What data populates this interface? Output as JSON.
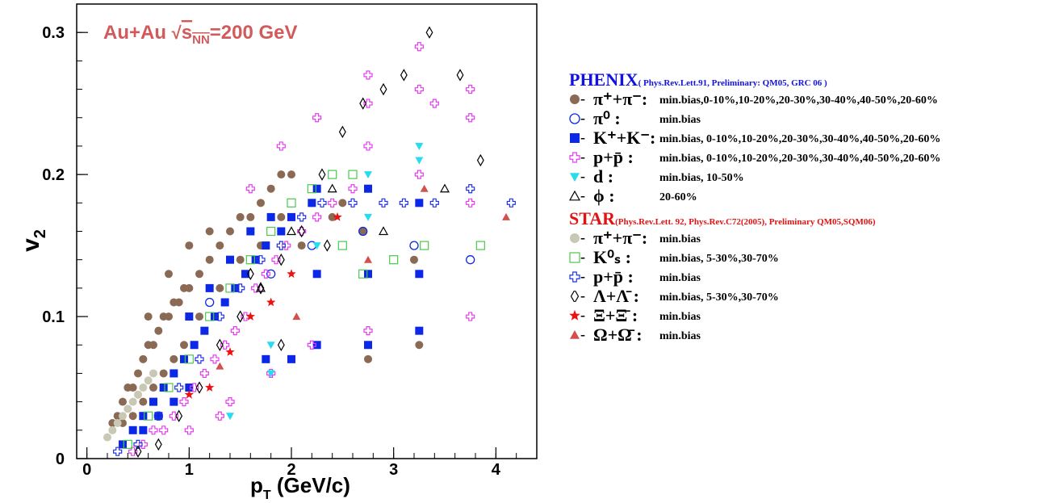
{
  "colors": {
    "pi_phenix": "#8b6a55",
    "pi0": "#0a28e6",
    "kaon": "#0a28e6",
    "proton": "#e63cf0",
    "deuteron": "#28dcf0",
    "phi": "#000000",
    "pi_star": "#c8c8b4",
    "k0s": "#4cc84c",
    "p_star": "#1e32e6",
    "lambda": "#000000",
    "xi": "#ee1111",
    "omega": "#d25050",
    "phenix_title": "#1212e0",
    "star_title": "#e01212",
    "annotation": "#d25a5a"
  },
  "chart_data": {
    "type": "scatter",
    "xlabel": "p_T (GeV/c)",
    "ylabel": "v_2",
    "annotation": "Au+Au √s_NN=200 GeV",
    "xlim": [
      -0.1,
      4.4
    ],
    "ylim": [
      0,
      0.32
    ],
    "xticks": [
      "0",
      "1",
      "2",
      "3",
      "4"
    ],
    "yticks": [
      "0",
      "0.1",
      "0.2",
      "0.3"
    ],
    "grid": false,
    "legend_placement": "right outside",
    "series": [
      {
        "id": "pi_phenix",
        "marker": "circle-filled",
        "color": "#8b6a55",
        "points": [
          [
            0.25,
            0.025
          ],
          [
            0.3,
            0.03
          ],
          [
            0.35,
            0.04
          ],
          [
            0.4,
            0.05
          ],
          [
            0.45,
            0.05
          ],
          [
            0.5,
            0.06
          ],
          [
            0.55,
            0.07
          ],
          [
            0.6,
            0.08
          ],
          [
            0.65,
            0.08
          ],
          [
            0.7,
            0.09
          ],
          [
            0.75,
            0.1
          ],
          [
            0.8,
            0.1
          ],
          [
            0.85,
            0.11
          ],
          [
            0.9,
            0.11
          ],
          [
            0.95,
            0.12
          ],
          [
            1.0,
            0.12
          ],
          [
            1.1,
            0.13
          ],
          [
            1.2,
            0.14
          ],
          [
            1.3,
            0.15
          ],
          [
            1.4,
            0.16
          ],
          [
            1.5,
            0.17
          ],
          [
            1.6,
            0.17
          ],
          [
            1.7,
            0.18
          ],
          [
            1.8,
            0.19
          ],
          [
            1.9,
            0.2
          ],
          [
            2.0,
            0.2
          ],
          [
            2.2,
            0.18
          ],
          [
            2.5,
            0.18
          ],
          [
            2.7,
            0.16
          ],
          [
            3.2,
            0.14
          ],
          [
            0.35,
            0.025
          ],
          [
            0.45,
            0.03
          ],
          [
            0.55,
            0.04
          ],
          [
            0.65,
            0.05
          ],
          [
            0.75,
            0.06
          ],
          [
            0.85,
            0.07
          ],
          [
            0.95,
            0.08
          ],
          [
            1.1,
            0.1
          ],
          [
            1.3,
            0.12
          ],
          [
            1.5,
            0.14
          ],
          [
            1.7,
            0.15
          ],
          [
            1.9,
            0.17
          ],
          [
            2.1,
            0.15
          ],
          [
            2.4,
            0.17
          ],
          [
            2.75,
            0.07
          ],
          [
            3.25,
            0.08
          ],
          [
            0.6,
            0.1
          ],
          [
            0.8,
            0.13
          ],
          [
            1.0,
            0.15
          ],
          [
            1.2,
            0.16
          ]
        ]
      },
      {
        "id": "pi0",
        "marker": "circle-open",
        "color": "#0a28e6",
        "points": [
          [
            1.2,
            0.11
          ],
          [
            1.8,
            0.13
          ],
          [
            2.2,
            0.15
          ],
          [
            2.7,
            0.16
          ],
          [
            3.2,
            0.15
          ],
          [
            3.75,
            0.14
          ]
        ]
      },
      {
        "id": "kaon",
        "marker": "square-filled",
        "color": "#0a28e6",
        "points": [
          [
            0.35,
            0.01
          ],
          [
            0.45,
            0.02
          ],
          [
            0.55,
            0.03
          ],
          [
            0.65,
            0.04
          ],
          [
            0.75,
            0.05
          ],
          [
            0.85,
            0.06
          ],
          [
            0.95,
            0.07
          ],
          [
            1.05,
            0.08
          ],
          [
            1.15,
            0.09
          ],
          [
            1.25,
            0.1
          ],
          [
            1.35,
            0.11
          ],
          [
            1.45,
            0.12
          ],
          [
            1.55,
            0.13
          ],
          [
            1.65,
            0.14
          ],
          [
            1.75,
            0.15
          ],
          [
            1.9,
            0.16
          ],
          [
            2.0,
            0.17
          ],
          [
            2.2,
            0.18
          ],
          [
            2.25,
            0.19
          ],
          [
            2.75,
            0.19
          ],
          [
            3.25,
            0.18
          ],
          [
            2.25,
            0.08
          ],
          [
            2.75,
            0.08
          ],
          [
            3.25,
            0.09
          ],
          [
            2.0,
            0.07
          ],
          [
            1.75,
            0.07
          ],
          [
            1.0,
            0.05
          ],
          [
            0.55,
            0.02
          ],
          [
            0.7,
            0.03
          ],
          [
            0.85,
            0.04
          ],
          [
            1.0,
            0.1
          ],
          [
            1.2,
            0.12
          ],
          [
            1.4,
            0.14
          ],
          [
            1.6,
            0.16
          ],
          [
            1.8,
            0.17
          ],
          [
            2.25,
            0.13
          ],
          [
            2.75,
            0.13
          ],
          [
            3.25,
            0.13
          ]
        ]
      },
      {
        "id": "proton",
        "marker": "cross-open",
        "color": "#e63cf0",
        "points": [
          [
            0.45,
            0.005
          ],
          [
            0.55,
            0.01
          ],
          [
            0.65,
            0.02
          ],
          [
            0.75,
            0.02
          ],
          [
            0.85,
            0.03
          ],
          [
            0.95,
            0.04
          ],
          [
            1.05,
            0.05
          ],
          [
            1.15,
            0.06
          ],
          [
            1.25,
            0.07
          ],
          [
            1.35,
            0.08
          ],
          [
            1.45,
            0.09
          ],
          [
            1.55,
            0.1
          ],
          [
            1.65,
            0.12
          ],
          [
            1.75,
            0.13
          ],
          [
            1.85,
            0.14
          ],
          [
            1.95,
            0.15
          ],
          [
            2.1,
            0.16
          ],
          [
            2.25,
            0.17
          ],
          [
            2.4,
            0.18
          ],
          [
            2.6,
            0.19
          ],
          [
            2.75,
            0.22
          ],
          [
            2.75,
            0.25
          ],
          [
            3.25,
            0.26
          ],
          [
            3.25,
            0.29
          ],
          [
            3.75,
            0.26
          ],
          [
            3.75,
            0.24
          ],
          [
            3.75,
            0.18
          ],
          [
            3.75,
            0.1
          ],
          [
            2.75,
            0.09
          ],
          [
            3.25,
            0.2
          ],
          [
            2.25,
            0.24
          ],
          [
            2.75,
            0.27
          ],
          [
            3.4,
            0.25
          ],
          [
            1.9,
            0.22
          ],
          [
            1.6,
            0.19
          ],
          [
            1.0,
            0.02
          ],
          [
            1.3,
            0.03
          ],
          [
            1.8,
            0.06
          ],
          [
            2.2,
            0.08
          ],
          [
            1.4,
            0.04
          ]
        ]
      },
      {
        "id": "deuteron",
        "marker": "triangle-down-filled",
        "color": "#28dcf0",
        "points": [
          [
            1.4,
            0.03
          ],
          [
            1.8,
            0.06
          ],
          [
            1.8,
            0.08
          ],
          [
            2.25,
            0.15
          ],
          [
            2.75,
            0.2
          ],
          [
            3.25,
            0.21
          ],
          [
            3.25,
            0.22
          ],
          [
            2.75,
            0.17
          ]
        ]
      },
      {
        "id": "phi",
        "marker": "triangle-up-open",
        "color": "#000000",
        "points": [
          [
            1.7,
            0.12
          ],
          [
            2.0,
            0.16
          ],
          [
            2.4,
            0.19
          ],
          [
            2.9,
            0.16
          ],
          [
            3.5,
            0.19
          ]
        ]
      },
      {
        "id": "pi_star",
        "marker": "circle-filled",
        "color": "#c8c8b4",
        "points": [
          [
            0.2,
            0.015
          ],
          [
            0.25,
            0.02
          ],
          [
            0.3,
            0.025
          ],
          [
            0.35,
            0.03
          ],
          [
            0.4,
            0.035
          ],
          [
            0.45,
            0.04
          ],
          [
            0.5,
            0.045
          ],
          [
            0.55,
            0.05
          ],
          [
            0.6,
            0.055
          ],
          [
            0.65,
            0.06
          ]
        ]
      },
      {
        "id": "k0s",
        "marker": "square-open",
        "color": "#4cc84c",
        "points": [
          [
            0.4,
            0.01
          ],
          [
            0.6,
            0.03
          ],
          [
            0.8,
            0.05
          ],
          [
            1.0,
            0.07
          ],
          [
            1.2,
            0.1
          ],
          [
            1.4,
            0.12
          ],
          [
            1.6,
            0.14
          ],
          [
            1.8,
            0.16
          ],
          [
            2.0,
            0.18
          ],
          [
            2.2,
            0.19
          ],
          [
            2.4,
            0.2
          ],
          [
            2.6,
            0.2
          ],
          [
            2.7,
            0.13
          ],
          [
            3.0,
            0.14
          ],
          [
            3.3,
            0.15
          ],
          [
            3.85,
            0.15
          ],
          [
            2.5,
            0.15
          ]
        ]
      },
      {
        "id": "p_star",
        "marker": "cross-open",
        "color": "#1e32e6",
        "points": [
          [
            0.3,
            0.005
          ],
          [
            0.5,
            0.01
          ],
          [
            0.7,
            0.03
          ],
          [
            0.9,
            0.05
          ],
          [
            1.1,
            0.07
          ],
          [
            1.3,
            0.1
          ],
          [
            1.5,
            0.12
          ],
          [
            1.7,
            0.14
          ],
          [
            1.9,
            0.15
          ],
          [
            2.1,
            0.17
          ],
          [
            2.3,
            0.18
          ],
          [
            2.6,
            0.18
          ],
          [
            2.9,
            0.18
          ],
          [
            3.1,
            0.18
          ],
          [
            3.4,
            0.18
          ],
          [
            3.75,
            0.19
          ],
          [
            4.15,
            0.18
          ]
        ]
      },
      {
        "id": "lambda",
        "marker": "diamond-open",
        "color": "#000000",
        "points": [
          [
            0.5,
            0.005
          ],
          [
            0.7,
            0.01
          ],
          [
            0.9,
            0.03
          ],
          [
            1.1,
            0.05
          ],
          [
            1.3,
            0.08
          ],
          [
            1.5,
            0.1
          ],
          [
            1.7,
            0.12
          ],
          [
            1.9,
            0.14
          ],
          [
            2.1,
            0.16
          ],
          [
            2.3,
            0.2
          ],
          [
            2.5,
            0.23
          ],
          [
            2.7,
            0.25
          ],
          [
            2.9,
            0.26
          ],
          [
            3.1,
            0.27
          ],
          [
            3.35,
            0.3
          ],
          [
            3.65,
            0.27
          ],
          [
            3.85,
            0.21
          ],
          [
            1.9,
            0.08
          ],
          [
            2.35,
            0.15
          ],
          [
            1.6,
            0.13
          ]
        ]
      },
      {
        "id": "xi",
        "marker": "star-filled",
        "color": "#ee1111",
        "points": [
          [
            1.0,
            0.045
          ],
          [
            1.2,
            0.05
          ],
          [
            1.4,
            0.075
          ],
          [
            1.6,
            0.1
          ],
          [
            1.8,
            0.11
          ],
          [
            2.0,
            0.13
          ],
          [
            2.45,
            0.17
          ]
        ]
      },
      {
        "id": "omega",
        "marker": "triangle-up-filled",
        "color": "#d25050",
        "points": [
          [
            1.3,
            0.065
          ],
          [
            2.05,
            0.1
          ],
          [
            2.75,
            0.14
          ],
          [
            3.3,
            0.19
          ],
          [
            4.1,
            0.17
          ]
        ]
      }
    ]
  },
  "legend": {
    "phenix_title": "PHENIX",
    "phenix_ref": "( Phys.Rev.Lett.91, Preliminary: QM05, GRC 06 )",
    "star_title": "STAR",
    "star_ref": "(Phys.Rev.Lett. 92, Phys.Rev.C72(2005), Preliminary QM05,SQM06)",
    "entries": [
      {
        "group": "phenix",
        "series": "pi_phenix",
        "label": "π⁺+π⁻:",
        "desc": "min.bias,0-10%,10-20%,20-30%,30-40%,40-50%,20-60%"
      },
      {
        "group": "phenix",
        "series": "pi0",
        "label": "π⁰ :",
        "desc": "min.bias"
      },
      {
        "group": "phenix",
        "series": "kaon",
        "label": "K⁺+K⁻:",
        "desc": "min.bias, 0-10%,10-20%,20-30%,30-40%,40-50%,20-60%"
      },
      {
        "group": "phenix",
        "series": "proton",
        "label": "p+p̄ :",
        "desc": "min.bias, 0-10%,10-20%,20-30%,30-40%,40-50%,20-60%"
      },
      {
        "group": "phenix",
        "series": "deuteron",
        "label": "d :",
        "desc": "min.bias, 10-50%"
      },
      {
        "group": "phenix",
        "series": "phi",
        "label": "ϕ :",
        "desc": "20-60%"
      },
      {
        "group": "star",
        "series": "pi_star",
        "label": "π⁺+π⁻:",
        "desc": "min.bias"
      },
      {
        "group": "star",
        "series": "k0s",
        "label": "K⁰ₛ :",
        "desc": "min.bias, 5-30%,30-70%"
      },
      {
        "group": "star",
        "series": "p_star",
        "label": "p+p̄ :",
        "desc": "min.bias"
      },
      {
        "group": "star",
        "series": "lambda",
        "label": "Λ+Λ̄ :",
        "desc": "min.bias, 5-30%,30-70%"
      },
      {
        "group": "star",
        "series": "xi",
        "label": "Ξ+Ξ̄ :",
        "desc": "min.bias"
      },
      {
        "group": "star",
        "series": "omega",
        "label": "Ω+Ω̄ :",
        "desc": "min.bias"
      }
    ]
  }
}
